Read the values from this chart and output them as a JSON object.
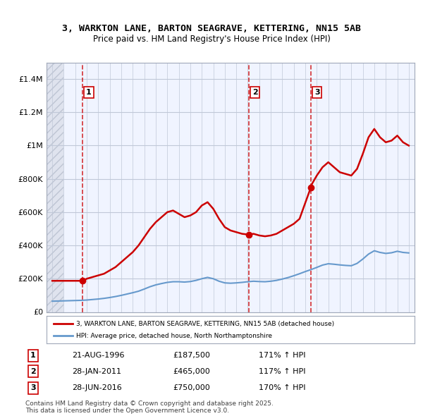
{
  "title": "3, WARKTON LANE, BARTON SEAGRAVE, KETTERING, NN15 5AB",
  "subtitle": "Price paid vs. HM Land Registry's House Price Index (HPI)",
  "house_line_label": "3, WARKTON LANE, BARTON SEAGRAVE, KETTERING, NN15 5AB (detached house)",
  "hpi_line_label": "HPI: Average price, detached house, North Northamptonshire",
  "house_color": "#cc0000",
  "hpi_color": "#6699cc",
  "background_color": "#ffffff",
  "plot_bg_color": "#f0f4ff",
  "grid_color": "#c0c8d8",
  "hatch_color": "#c8d0e0",
  "ylim": [
    0,
    1500000
  ],
  "yticks": [
    0,
    200000,
    400000,
    600000,
    800000,
    1000000,
    1200000,
    1400000
  ],
  "ytick_labels": [
    "£0",
    "£200K",
    "£400K",
    "£600K",
    "£800K",
    "£1M",
    "£1.2M",
    "£1.4M"
  ],
  "xlim_start": 1993.5,
  "xlim_end": 2025.5,
  "xticks": [
    1994,
    1995,
    1996,
    1997,
    1998,
    1999,
    2000,
    2001,
    2002,
    2003,
    2004,
    2005,
    2006,
    2007,
    2008,
    2009,
    2010,
    2011,
    2012,
    2013,
    2014,
    2015,
    2016,
    2017,
    2018,
    2019,
    2020,
    2021,
    2022,
    2023,
    2024,
    2025
  ],
  "transactions": [
    {
      "num": 1,
      "date": "21-AUG-1996",
      "price": 187500,
      "hpi_pct": "171%",
      "x": 1996.64
    },
    {
      "num": 2,
      "date": "28-JAN-2011",
      "price": 465000,
      "hpi_pct": "117%",
      "x": 2011.08
    },
    {
      "num": 3,
      "date": "28-JUN-2016",
      "price": 750000,
      "hpi_pct": "170%",
      "x": 2016.49
    }
  ],
  "footnote": "Contains HM Land Registry data © Crown copyright and database right 2025.\nThis data is licensed under the Open Government Licence v3.0.",
  "house_prices_x": [
    1994.0,
    1994.5,
    1995.0,
    1995.5,
    1996.0,
    1996.64,
    1997.0,
    1997.5,
    1998.0,
    1998.5,
    1999.0,
    1999.5,
    2000.0,
    2000.5,
    2001.0,
    2001.5,
    2002.0,
    2002.5,
    2003.0,
    2003.5,
    2004.0,
    2004.5,
    2005.0,
    2005.5,
    2006.0,
    2006.5,
    2007.0,
    2007.5,
    2008.0,
    2008.5,
    2009.0,
    2009.5,
    2010.0,
    2010.5,
    2011.08,
    2011.5,
    2012.0,
    2012.5,
    2013.0,
    2013.5,
    2014.0,
    2014.5,
    2015.0,
    2015.5,
    2016.49,
    2016.5,
    2017.0,
    2017.5,
    2018.0,
    2018.5,
    2019.0,
    2019.5,
    2020.0,
    2020.5,
    2021.0,
    2021.5,
    2022.0,
    2022.5,
    2023.0,
    2023.5,
    2024.0,
    2024.5,
    2025.0
  ],
  "house_prices_y": [
    187500,
    187500,
    187500,
    187500,
    187500,
    187500,
    200000,
    210000,
    220000,
    230000,
    250000,
    270000,
    300000,
    330000,
    360000,
    400000,
    450000,
    500000,
    540000,
    570000,
    600000,
    610000,
    590000,
    570000,
    580000,
    600000,
    640000,
    660000,
    620000,
    560000,
    510000,
    490000,
    480000,
    470000,
    465000,
    470000,
    460000,
    455000,
    460000,
    470000,
    490000,
    510000,
    530000,
    560000,
    750000,
    760000,
    820000,
    870000,
    900000,
    870000,
    840000,
    830000,
    820000,
    860000,
    950000,
    1050000,
    1100000,
    1050000,
    1020000,
    1030000,
    1060000,
    1020000,
    1000000
  ],
  "hpi_x": [
    1994.0,
    1994.5,
    1995.0,
    1995.5,
    1996.0,
    1996.5,
    1997.0,
    1997.5,
    1998.0,
    1998.5,
    1999.0,
    1999.5,
    2000.0,
    2000.5,
    2001.0,
    2001.5,
    2002.0,
    2002.5,
    2003.0,
    2003.5,
    2004.0,
    2004.5,
    2005.0,
    2005.5,
    2006.0,
    2006.5,
    2007.0,
    2007.5,
    2008.0,
    2008.5,
    2009.0,
    2009.5,
    2010.0,
    2010.5,
    2011.0,
    2011.5,
    2012.0,
    2012.5,
    2013.0,
    2013.5,
    2014.0,
    2014.5,
    2015.0,
    2015.5,
    2016.0,
    2016.5,
    2017.0,
    2017.5,
    2018.0,
    2018.5,
    2019.0,
    2019.5,
    2020.0,
    2020.5,
    2021.0,
    2021.5,
    2022.0,
    2022.5,
    2023.0,
    2023.5,
    2024.0,
    2024.5,
    2025.0
  ],
  "hpi_y": [
    65000,
    66000,
    67000,
    68000,
    69000,
    70000,
    72000,
    75000,
    78000,
    82000,
    87000,
    93000,
    100000,
    108000,
    116000,
    125000,
    138000,
    152000,
    163000,
    171000,
    178000,
    182000,
    182000,
    180000,
    183000,
    190000,
    200000,
    208000,
    200000,
    185000,
    175000,
    173000,
    175000,
    178000,
    182000,
    185000,
    183000,
    182000,
    185000,
    190000,
    198000,
    207000,
    218000,
    230000,
    243000,
    255000,
    268000,
    282000,
    290000,
    287000,
    283000,
    280000,
    278000,
    292000,
    318000,
    348000,
    368000,
    358000,
    352000,
    356000,
    365000,
    358000,
    355000
  ]
}
